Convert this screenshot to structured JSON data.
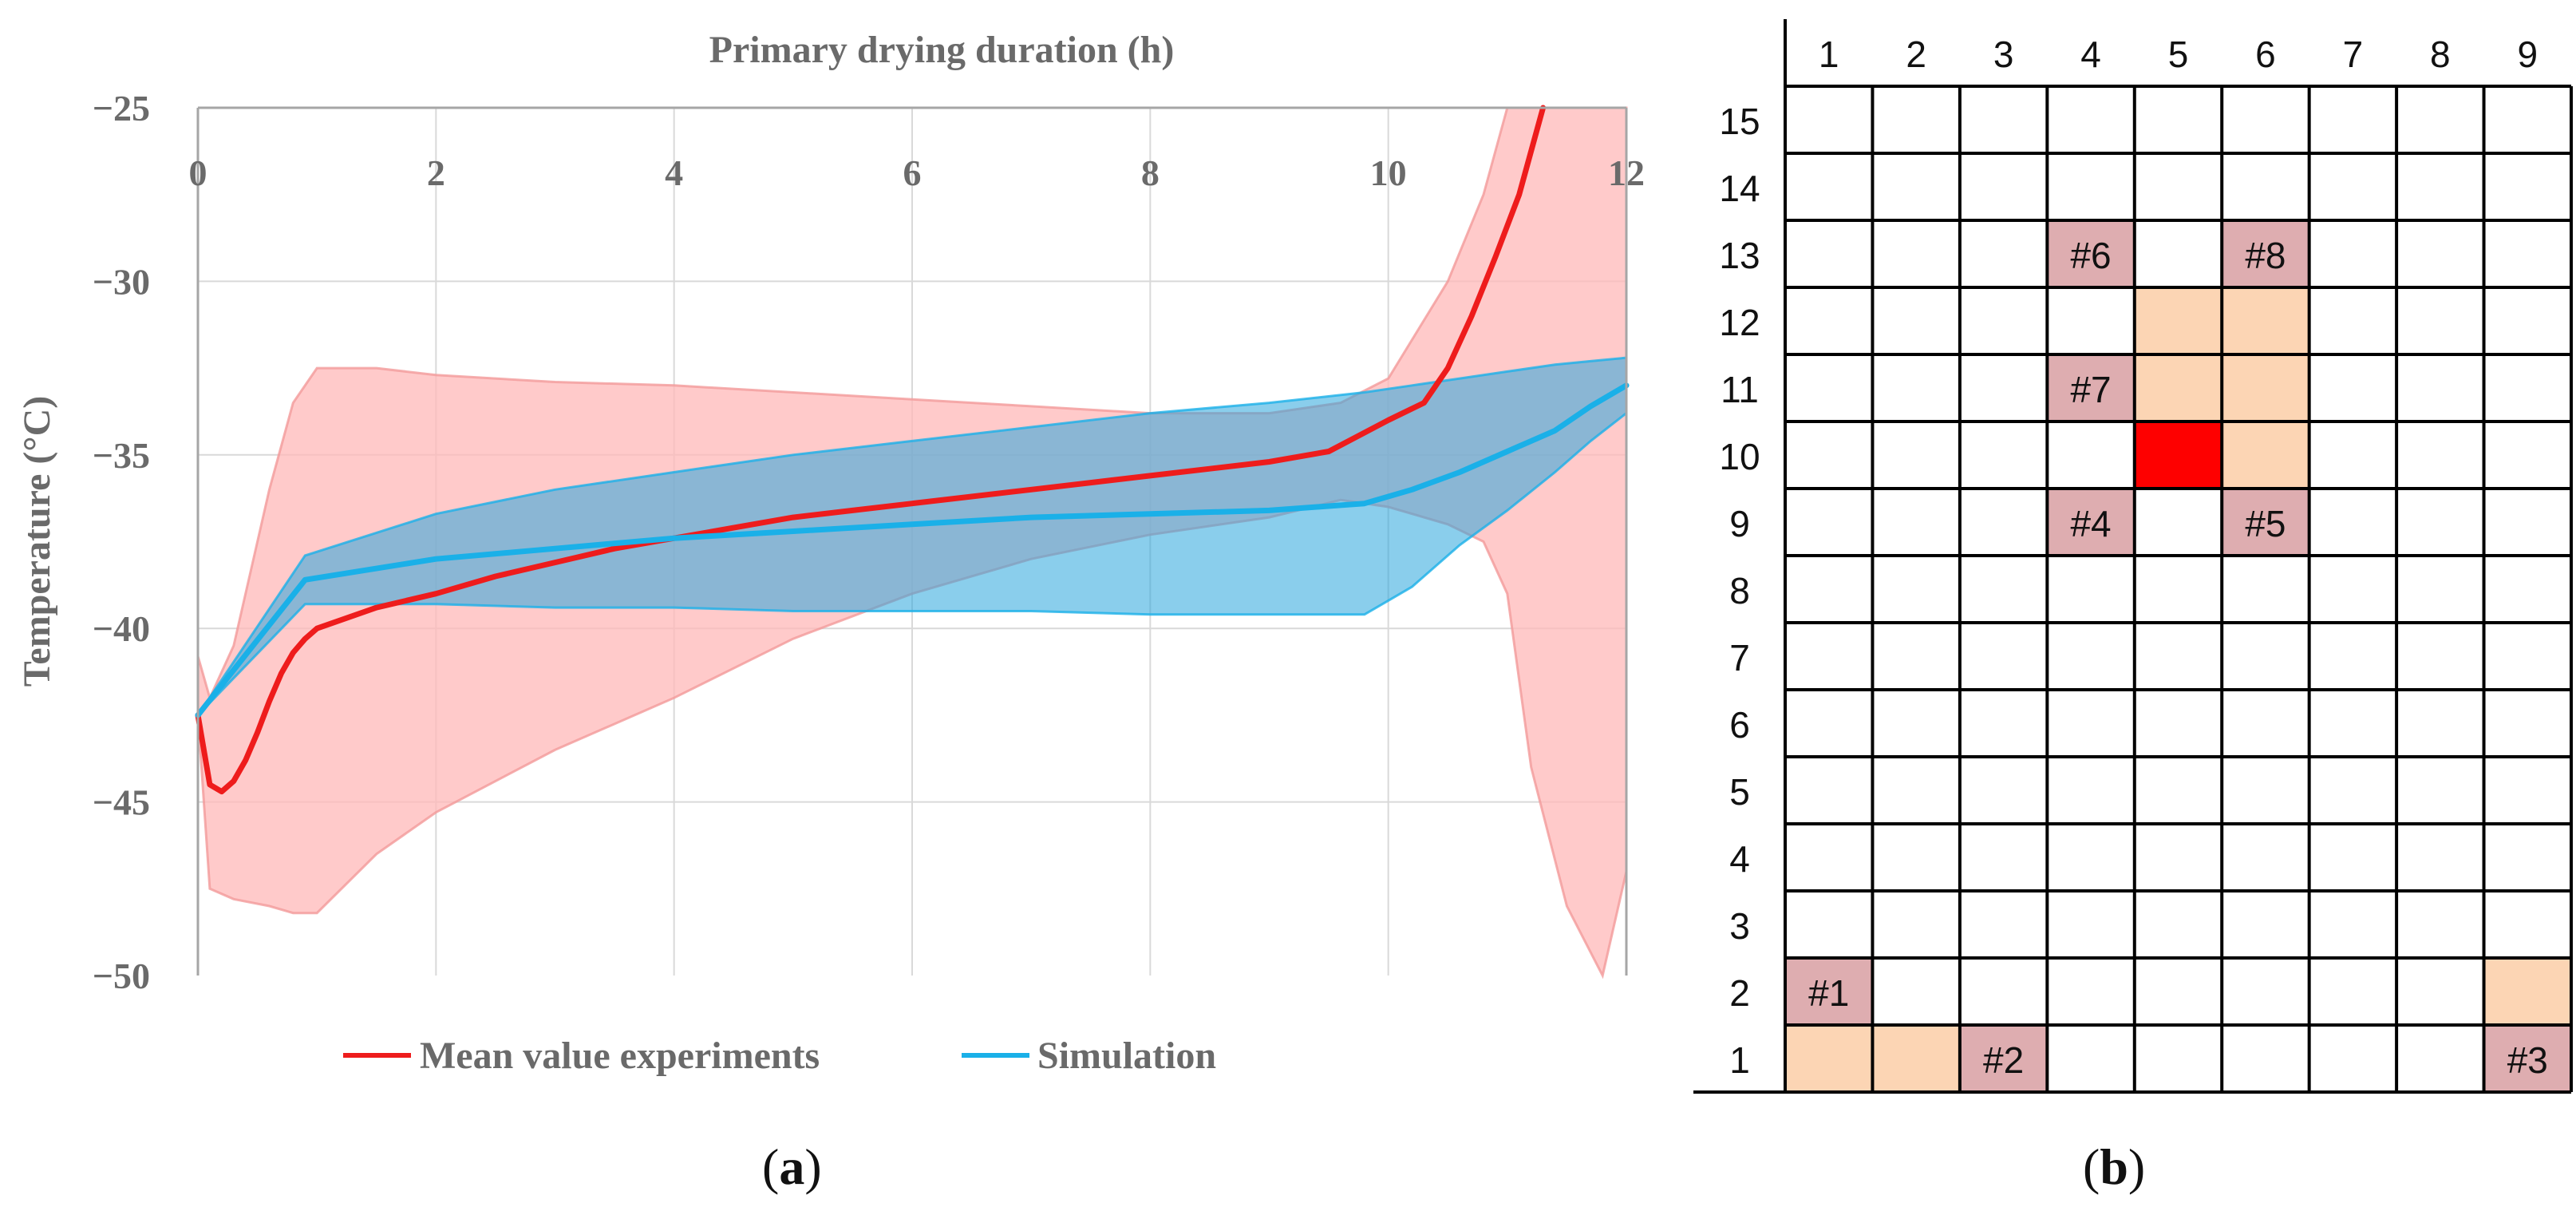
{
  "chart_data": [
    {
      "type": "line",
      "title": "",
      "xlabel": "Primary drying duration (h)",
      "ylabel": "Temperature (°C)",
      "xlim": [
        0,
        12
      ],
      "ylim": [
        -50,
        -25
      ],
      "x_axis_position": "top",
      "x_ticks": [
        "0",
        "2",
        "4",
        "6",
        "8",
        "10",
        "12"
      ],
      "y_ticks": [
        "−25",
        "−30",
        "−35",
        "−40",
        "−45",
        "−50"
      ],
      "grid": true,
      "legend": "bottom",
      "series": [
        {
          "name": "Mean value experiments",
          "color": "#ee1c1c",
          "x": [
            0,
            0.1,
            0.2,
            0.3,
            0.4,
            0.5,
            0.6,
            0.7,
            0.8,
            0.9,
            1.0,
            1.5,
            2,
            2.5,
            3,
            3.5,
            4,
            4.5,
            5,
            5.5,
            6,
            6.5,
            7,
            7.5,
            8,
            8.5,
            9,
            9.5,
            10,
            10.3,
            10.5,
            10.7,
            10.9,
            11.1,
            11.3
          ],
          "y": [
            -42.5,
            -44.5,
            -44.7,
            -44.4,
            -43.8,
            -43.0,
            -42.1,
            -41.3,
            -40.7,
            -40.3,
            -40.0,
            -39.4,
            -39.0,
            -38.5,
            -38.1,
            -37.7,
            -37.4,
            -37.1,
            -36.8,
            -36.6,
            -36.4,
            -36.2,
            -36.0,
            -35.8,
            -35.6,
            -35.4,
            -35.2,
            -34.9,
            -34.0,
            -33.5,
            -32.5,
            -31.0,
            -29.3,
            -27.5,
            -25.0
          ],
          "band": {
            "x": [
              0,
              0.1,
              0.3,
              0.6,
              0.8,
              1.0,
              1.5,
              2,
              3,
              4,
              5,
              6,
              7,
              8,
              9,
              9.6,
              10,
              10.5,
              10.8,
              11.0,
              11.2,
              11.5,
              11.8,
              12
            ],
            "upper": [
              -40.8,
              -42.0,
              -40.5,
              -36.0,
              -33.5,
              -32.5,
              -32.5,
              -32.7,
              -32.9,
              -33.0,
              -33.2,
              -33.4,
              -33.6,
              -33.8,
              -33.8,
              -33.5,
              -32.8,
              -30.0,
              -27.5,
              -25.0,
              -25.0,
              -25.0,
              -25.0,
              -25.0
            ],
            "lower": [
              -42.5,
              -47.5,
              -47.8,
              -48.0,
              -48.2,
              -48.2,
              -46.5,
              -45.3,
              -43.5,
              -42.0,
              -40.3,
              -39.0,
              -38.0,
              -37.3,
              -36.8,
              -36.3,
              -36.5,
              -37.0,
              -37.5,
              -39.0,
              -44.0,
              -48.0,
              -50.0,
              -47.0
            ]
          }
        },
        {
          "name": "Simulation",
          "color": "#1ab0e8",
          "x": [
            0,
            0.9,
            2,
            3,
            4,
            5,
            6,
            7,
            8,
            9,
            9.8,
            10.2,
            10.6,
            11.0,
            11.4,
            11.7,
            12
          ],
          "y": [
            -42.5,
            -38.6,
            -38.0,
            -37.7,
            -37.4,
            -37.2,
            -37.0,
            -36.8,
            -36.7,
            -36.6,
            -36.4,
            -36.0,
            -35.5,
            -34.9,
            -34.3,
            -33.6,
            -33.0
          ],
          "band": {
            "x": [
              0,
              0.9,
              2,
              3,
              4,
              5,
              6,
              7,
              8,
              9,
              9.8,
              10.2,
              10.6,
              11.0,
              11.4,
              11.7,
              12
            ],
            "upper": [
              -42.5,
              -37.9,
              -36.7,
              -36.0,
              -35.5,
              -35.0,
              -34.6,
              -34.2,
              -33.8,
              -33.5,
              -33.2,
              -33.0,
              -32.8,
              -32.6,
              -32.4,
              -32.3,
              -32.2
            ],
            "lower": [
              -42.5,
              -39.3,
              -39.3,
              -39.4,
              -39.4,
              -39.5,
              -39.5,
              -39.5,
              -39.6,
              -39.6,
              -39.6,
              -38.8,
              -37.6,
              -36.6,
              -35.5,
              -34.6,
              -33.8
            ]
          }
        }
      ]
    },
    {
      "type": "table",
      "title": "",
      "columns": [
        "1",
        "2",
        "3",
        "4",
        "5",
        "6",
        "7",
        "8",
        "9"
      ],
      "rows": [
        "15",
        "14",
        "13",
        "12",
        "11",
        "10",
        "9",
        "8",
        "7",
        "6",
        "5",
        "4",
        "3",
        "2",
        "1"
      ],
      "colors": {
        "mauve": "#deadb0",
        "peach": "#fcd5b4",
        "red": "#fe0000"
      },
      "cells": [
        {
          "col": "4",
          "row": "13",
          "label": "#6",
          "fill": "mauve"
        },
        {
          "col": "6",
          "row": "13",
          "label": "#8",
          "fill": "mauve"
        },
        {
          "col": "5",
          "row": "12",
          "label": "",
          "fill": "peach"
        },
        {
          "col": "6",
          "row": "12",
          "label": "",
          "fill": "peach"
        },
        {
          "col": "4",
          "row": "11",
          "label": "#7",
          "fill": "mauve"
        },
        {
          "col": "5",
          "row": "11",
          "label": "",
          "fill": "peach"
        },
        {
          "col": "6",
          "row": "11",
          "label": "",
          "fill": "peach"
        },
        {
          "col": "5",
          "row": "10",
          "label": "",
          "fill": "red"
        },
        {
          "col": "6",
          "row": "10",
          "label": "",
          "fill": "peach"
        },
        {
          "col": "4",
          "row": "9",
          "label": "#4",
          "fill": "mauve"
        },
        {
          "col": "6",
          "row": "9",
          "label": "#5",
          "fill": "mauve"
        },
        {
          "col": "1",
          "row": "2",
          "label": "#1",
          "fill": "mauve"
        },
        {
          "col": "9",
          "row": "2",
          "label": "",
          "fill": "peach"
        },
        {
          "col": "1",
          "row": "1",
          "label": "",
          "fill": "peach"
        },
        {
          "col": "2",
          "row": "1",
          "label": "",
          "fill": "peach"
        },
        {
          "col": "3",
          "row": "1",
          "label": "#2",
          "fill": "mauve"
        },
        {
          "col": "9",
          "row": "1",
          "label": "#3",
          "fill": "mauve"
        }
      ]
    }
  ],
  "panels": {
    "a": {
      "open": "(",
      "letter": "a",
      "close": ")"
    },
    "b": {
      "open": "(",
      "letter": "b",
      "close": ")"
    }
  }
}
